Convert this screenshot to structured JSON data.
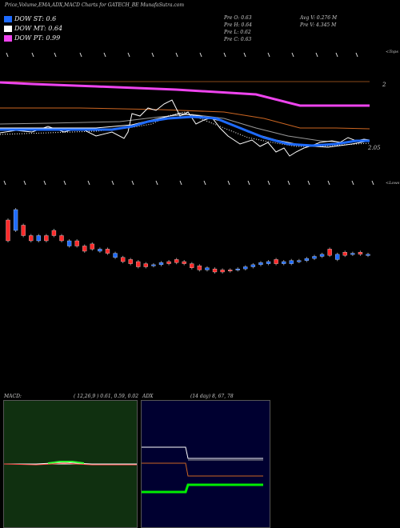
{
  "header": {
    "title": "Price,Volume,EMA,ADX,MACD Charts for GATECH_BE MunafaSutra.com"
  },
  "legend": {
    "items": [
      {
        "label": "DOW ST: 0.6",
        "color": "#1e6bff"
      },
      {
        "label": "DOW MT: 0.64",
        "color": "#ffffff"
      },
      {
        "label": "DOW PT: 0.99",
        "color": "#ee44ee"
      }
    ]
  },
  "info": {
    "col1": [
      "Pre O: 0.63",
      "Pre H: 0.64",
      "Pre L: 0.62",
      "Pre C: 0.63"
    ],
    "col2": [
      "Avg V: 0.276 M",
      "Pre V: 4.345 M"
    ]
  },
  "price_panel": {
    "top_label": "<Tops",
    "bottom_label": "<Lows",
    "tick_2": "2",
    "tick_205": "2.05"
  },
  "macd_panel": {
    "label": "MACD:",
    "params": "( 12,26,9 ) 0.61, 0.59, 0.02",
    "bg": "#103010"
  },
  "adx_panel": {
    "label": "ADX",
    "params": "(14 day) 8, 67, 78",
    "bg": "#000030"
  },
  "chart_data": {
    "type": "candlestick",
    "candles": [
      {
        "o": 0.64,
        "c": 0.66,
        "color": "#ff2a2a"
      },
      {
        "o": 0.65,
        "c": 0.67,
        "color": "#1e6bff"
      },
      {
        "o": 0.645,
        "c": 0.655,
        "color": "#ff2a2a"
      },
      {
        "o": 0.64,
        "c": 0.645,
        "color": "#ff2a2a"
      },
      {
        "o": 0.64,
        "c": 0.645,
        "color": "#1e6bff"
      },
      {
        "o": 0.64,
        "c": 0.645,
        "color": "#ff2a2a"
      },
      {
        "o": 0.645,
        "c": 0.65,
        "color": "#ff2a2a"
      },
      {
        "o": 0.64,
        "c": 0.645,
        "color": "#ff2a2a"
      },
      {
        "o": 0.635,
        "c": 0.64,
        "color": "#1e6bff"
      },
      {
        "o": 0.635,
        "c": 0.64,
        "color": "#ff2a2a"
      },
      {
        "o": 0.63,
        "c": 0.635,
        "color": "#ff2a2a"
      },
      {
        "o": 0.632,
        "c": 0.637,
        "color": "#ff2a2a"
      },
      {
        "o": 0.63,
        "c": 0.632,
        "color": "#1e6bff"
      },
      {
        "o": 0.628,
        "c": 0.632,
        "color": "#ff2a2a"
      },
      {
        "o": 0.624,
        "c": 0.628,
        "color": "#1e6bff"
      },
      {
        "o": 0.62,
        "c": 0.624,
        "color": "#ff2a2a"
      },
      {
        "o": 0.618,
        "c": 0.622,
        "color": "#ff2a2a"
      },
      {
        "o": 0.615,
        "c": 0.62,
        "color": "#ff2a2a"
      },
      {
        "o": 0.615,
        "c": 0.618,
        "color": "#ff2a2a"
      },
      {
        "o": 0.616,
        "c": 0.617,
        "color": "#1e6bff"
      },
      {
        "o": 0.617,
        "c": 0.619,
        "color": "#1e6bff"
      },
      {
        "o": 0.618,
        "c": 0.62,
        "color": "#ff2a2a"
      },
      {
        "o": 0.619,
        "c": 0.622,
        "color": "#ff2a2a"
      },
      {
        "o": 0.618,
        "c": 0.62,
        "color": "#ff2a2a"
      },
      {
        "o": 0.614,
        "c": 0.618,
        "color": "#ff2a2a"
      },
      {
        "o": 0.612,
        "c": 0.616,
        "color": "#ff2a2a"
      },
      {
        "o": 0.612,
        "c": 0.614,
        "color": "#1e6bff"
      },
      {
        "o": 0.61,
        "c": 0.613,
        "color": "#ff2a2a"
      },
      {
        "o": 0.61,
        "c": 0.612,
        "color": "#ff2a2a"
      },
      {
        "o": 0.611,
        "c": 0.612,
        "color": "#ff2a2a"
      },
      {
        "o": 0.612,
        "c": 0.613,
        "color": "#1e6bff"
      },
      {
        "o": 0.613,
        "c": 0.615,
        "color": "#1e6bff"
      },
      {
        "o": 0.615,
        "c": 0.617,
        "color": "#1e6bff"
      },
      {
        "o": 0.617,
        "c": 0.619,
        "color": "#1e6bff"
      },
      {
        "o": 0.618,
        "c": 0.62,
        "color": "#1e6bff"
      },
      {
        "o": 0.618,
        "c": 0.622,
        "color": "#ff2a2a"
      },
      {
        "o": 0.618,
        "c": 0.62,
        "color": "#1e6bff"
      },
      {
        "o": 0.618,
        "c": 0.621,
        "color": "#1e6bff"
      },
      {
        "o": 0.62,
        "c": 0.621,
        "color": "#1e6bff"
      },
      {
        "o": 0.621,
        "c": 0.623,
        "color": "#1e6bff"
      },
      {
        "o": 0.623,
        "c": 0.625,
        "color": "#1e6bff"
      },
      {
        "o": 0.625,
        "c": 0.627,
        "color": "#1e6bff"
      },
      {
        "o": 0.626,
        "c": 0.632,
        "color": "#ff2a2a"
      },
      {
        "o": 0.622,
        "c": 0.627,
        "color": "#1e6bff"
      },
      {
        "o": 0.626,
        "c": 0.629,
        "color": "#ff2a2a"
      },
      {
        "o": 0.627,
        "c": 0.628,
        "color": "#1e6bff"
      },
      {
        "o": 0.627,
        "c": 0.629,
        "color": "#ff2a2a"
      },
      {
        "o": 0.626,
        "c": 0.627,
        "color": "#1e6bff"
      }
    ]
  }
}
